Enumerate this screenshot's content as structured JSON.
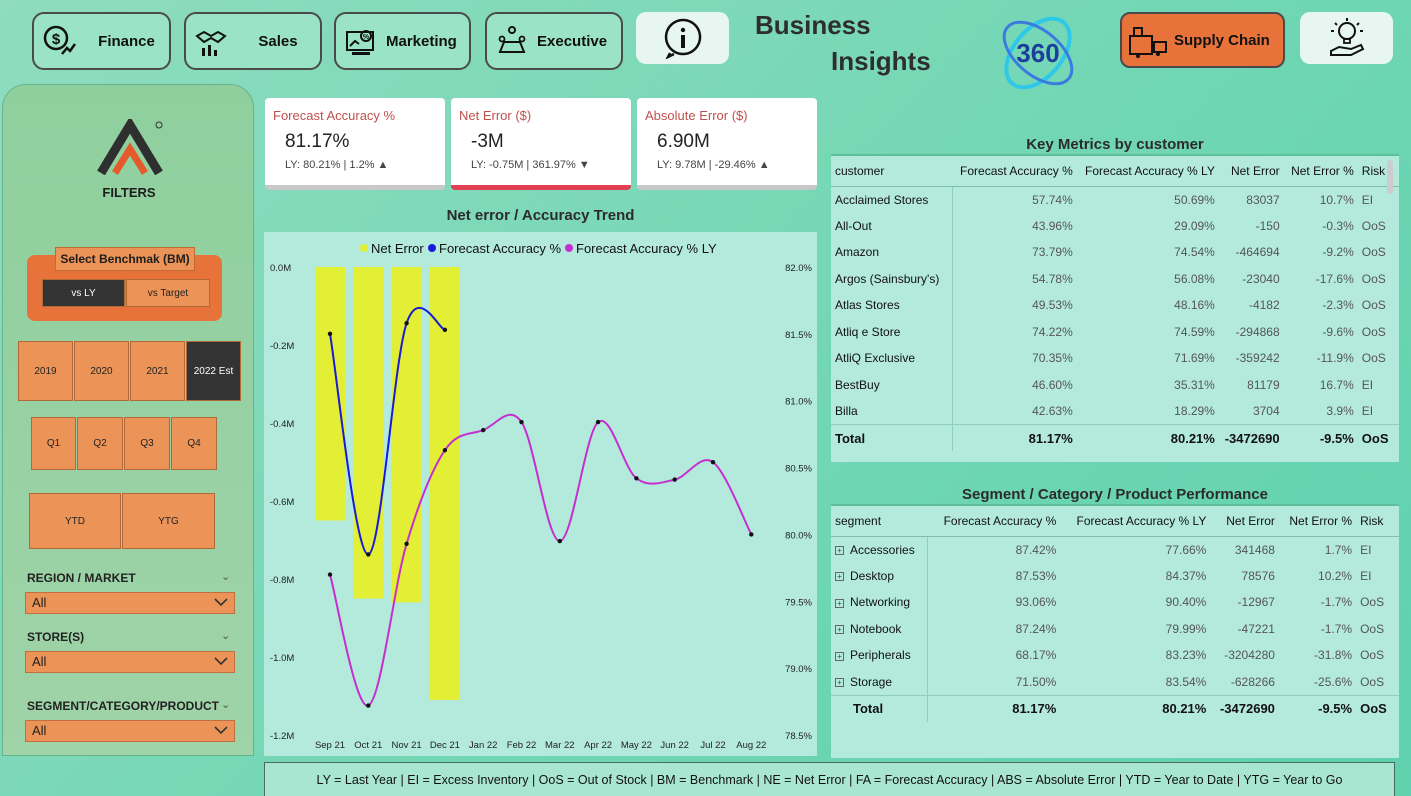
{
  "nav": {
    "finance": "Finance",
    "sales": "Sales",
    "marketing": "Marketing",
    "executive": "Executive",
    "supply_chain": "Supply Chain"
  },
  "brand": {
    "line1": "Business",
    "line2": "Insights",
    "logo_text": "360"
  },
  "filters": {
    "title": "FILTERS",
    "benchmark_label": "Select Benchmak (BM)",
    "benchmark_options": [
      "vs LY",
      "vs Target"
    ],
    "years": [
      "2019",
      "2020",
      "2021",
      "2022 Est"
    ],
    "quarters": [
      "Q1",
      "Q2",
      "Q3",
      "Q4"
    ],
    "periods": [
      "YTD",
      "YTG"
    ],
    "region_label": "REGION / MARKET",
    "region_value": "All",
    "store_label": "STORE(S)",
    "store_value": "All",
    "segment_label": "SEGMENT/CATEGORY/PRODUCT",
    "segment_value": "All"
  },
  "kpis": [
    {
      "title": "Forecast Accuracy %",
      "value": "81.17%",
      "sub": "LY: 80.21% | 1.2% ▲"
    },
    {
      "title": "Net Error ($)",
      "value": "-3M",
      "sub": "LY: -0.75M | 361.97% ▼"
    },
    {
      "title": "Absolute Error ($)",
      "value": "6.90M",
      "sub": "LY: 9.78M | -29.46% ▲"
    }
  ],
  "trend": {
    "title": "Net error / Accuracy Trend",
    "legend": [
      "Net Error",
      "Forecast Accuracy %",
      "Forecast Accuracy % LY"
    ],
    "colors": {
      "net_error": "#e3ef34",
      "fa": "#1a1ad9",
      "fa_ly": "#c62ed0"
    }
  },
  "chart_data": {
    "type": "bar+line",
    "title": "Net error / Accuracy Trend",
    "categories": [
      "Sep 21",
      "Oct 21",
      "Nov 21",
      "Dec 21",
      "Jan 22",
      "Feb 22",
      "Mar 22",
      "Apr 22",
      "May 22",
      "Jun 22",
      "Jul 22",
      "Aug 22"
    ],
    "left_axis": {
      "ticks": [
        "0.0M",
        "-0.2M",
        "-0.4M",
        "-0.6M",
        "-0.8M",
        "-1.0M",
        "-1.2M"
      ],
      "range": [
        -1.2,
        0
      ]
    },
    "right_axis": {
      "ticks": [
        "82.0%",
        "81.5%",
        "81.0%",
        "80.5%",
        "80.0%",
        "79.5%",
        "79.0%",
        "78.5%"
      ],
      "range": [
        78.5,
        82.0
      ]
    },
    "series": [
      {
        "name": "Net Error",
        "axis": "left",
        "kind": "bar",
        "values": [
          -0.65,
          -0.85,
          -0.86,
          -1.11,
          null,
          null,
          null,
          null,
          null,
          null,
          null,
          null
        ]
      },
      {
        "name": "Forecast Accuracy %",
        "axis": "right",
        "kind": "line",
        "values": [
          81.5,
          79.85,
          81.58,
          81.53,
          null,
          null,
          null,
          null,
          null,
          null,
          null,
          null
        ]
      },
      {
        "name": "Forecast Accuracy % LY",
        "axis": "right",
        "kind": "line",
        "values": [
          79.7,
          78.72,
          79.93,
          80.63,
          80.78,
          80.84,
          79.95,
          80.84,
          80.42,
          80.41,
          80.54,
          80.0
        ]
      }
    ]
  },
  "customer_table": {
    "title": "Key Metrics by customer",
    "headers": [
      "customer",
      "Forecast Accuracy %",
      "Forecast Accuracy % LY",
      "Net Error",
      "Net Error %",
      "Risk"
    ],
    "rows": [
      [
        "Acclaimed Stores",
        "57.74%",
        "50.69%",
        "83037",
        "10.7%",
        "EI"
      ],
      [
        "All-Out",
        "43.96%",
        "29.09%",
        "-150",
        "-0.3%",
        "OoS"
      ],
      [
        "Amazon",
        "73.79%",
        "74.54%",
        "-464694",
        "-9.2%",
        "OoS"
      ],
      [
        "Argos (Sainsbury's)",
        "54.78%",
        "56.08%",
        "-23040",
        "-17.6%",
        "OoS"
      ],
      [
        "Atlas Stores",
        "49.53%",
        "48.16%",
        "-4182",
        "-2.3%",
        "OoS"
      ],
      [
        "Atliq e Store",
        "74.22%",
        "74.59%",
        "-294868",
        "-9.6%",
        "OoS"
      ],
      [
        "AtliQ Exclusive",
        "70.35%",
        "71.69%",
        "-359242",
        "-11.9%",
        "OoS"
      ],
      [
        "BestBuy",
        "46.60%",
        "35.31%",
        "81179",
        "16.7%",
        "EI"
      ],
      [
        "Billa",
        "42.63%",
        "18.29%",
        "3704",
        "3.9%",
        "EI"
      ]
    ],
    "total": [
      "Total",
      "81.17%",
      "80.21%",
      "-3472690",
      "-9.5%",
      "OoS"
    ]
  },
  "segment_table": {
    "title": "Segment / Category / Product Performance",
    "headers": [
      "segment",
      "Forecast Accuracy %",
      "Forecast Accuracy % LY",
      "Net Error",
      "Net Error %",
      "Risk"
    ],
    "rows": [
      [
        "Accessories",
        "87.42%",
        "77.66%",
        "341468",
        "1.7%",
        "EI"
      ],
      [
        "Desktop",
        "87.53%",
        "84.37%",
        "78576",
        "10.2%",
        "EI"
      ],
      [
        "Networking",
        "93.06%",
        "90.40%",
        "-12967",
        "-1.7%",
        "OoS"
      ],
      [
        "Notebook",
        "87.24%",
        "79.99%",
        "-47221",
        "-1.7%",
        "OoS"
      ],
      [
        "Peripherals",
        "68.17%",
        "83.23%",
        "-3204280",
        "-31.8%",
        "OoS"
      ],
      [
        "Storage",
        "71.50%",
        "83.54%",
        "-628266",
        "-25.6%",
        "OoS"
      ]
    ],
    "total": [
      "Total",
      "81.17%",
      "80.21%",
      "-3472690",
      "-9.5%",
      "OoS"
    ]
  },
  "footer": "LY = Last Year | EI = Excess Inventory | OoS = Out of Stock | BM = Benchmark | NE = Net Error | FA = Forecast Accuracy | ABS = Absolute Error | YTD = Year to Date | YTG = Year to Go"
}
